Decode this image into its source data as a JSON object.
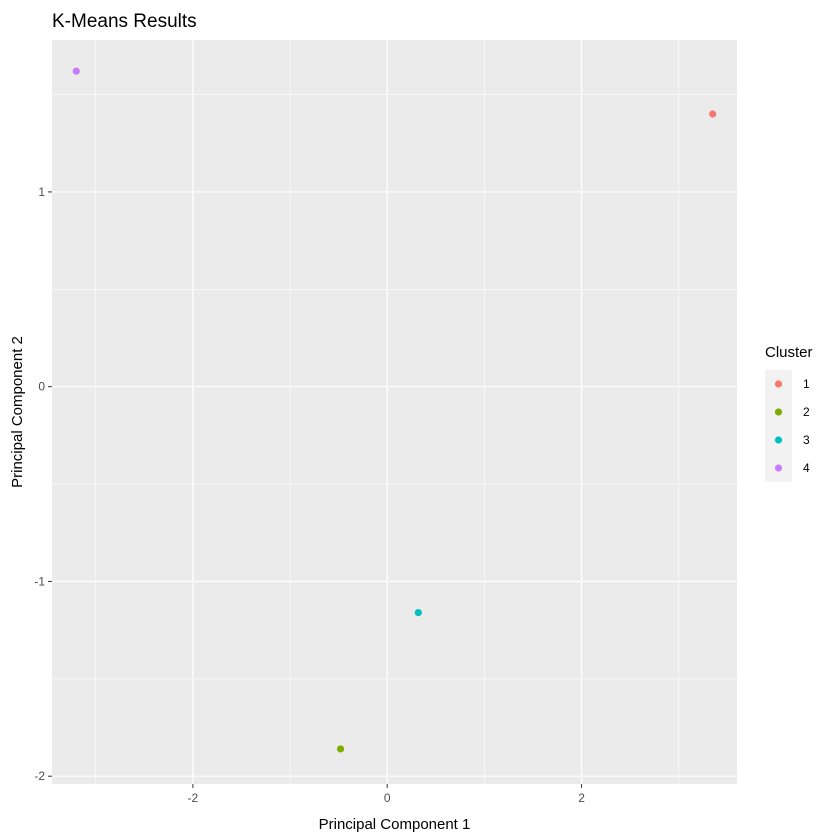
{
  "chart_data": {
    "type": "scatter",
    "title": "K-Means Results",
    "xlabel": "Principal Component 1",
    "ylabel": "Principal Component 2",
    "xlim": [
      -3.45,
      3.6
    ],
    "ylim": [
      -2.04,
      1.78
    ],
    "x_ticks": [
      -2,
      0,
      2
    ],
    "y_ticks": [
      -2,
      -1,
      0,
      1
    ],
    "x_tick_labels": [
      "-2",
      "0",
      "2"
    ],
    "y_tick_labels": [
      "-2",
      "-1",
      "0",
      "1"
    ],
    "x_minor": [
      -3,
      -1,
      1,
      3
    ],
    "y_minor": [
      -1.5,
      -0.5,
      0.5,
      1.5
    ],
    "grid": true,
    "legend_position": "right",
    "legend": {
      "title": "Cluster",
      "entries": [
        {
          "label": "1",
          "color": "#F8766D"
        },
        {
          "label": "2",
          "color": "#7CAE00"
        },
        {
          "label": "3",
          "color": "#00BFC4"
        },
        {
          "label": "4",
          "color": "#C77CFF"
        }
      ]
    },
    "series": [
      {
        "name": "1",
        "color": "#F8766D",
        "points": [
          {
            "x": 3.35,
            "y": 1.4
          }
        ]
      },
      {
        "name": "2",
        "color": "#7CAE00",
        "points": [
          {
            "x": -0.48,
            "y": -1.86
          }
        ]
      },
      {
        "name": "3",
        "color": "#00BFC4",
        "points": [
          {
            "x": 0.32,
            "y": -1.16
          }
        ]
      },
      {
        "name": "4",
        "color": "#C77CFF",
        "points": [
          {
            "x": -3.2,
            "y": 1.62
          }
        ]
      }
    ],
    "panel_background": "#EBEBEB",
    "grid_color": "#FFFFFF"
  }
}
